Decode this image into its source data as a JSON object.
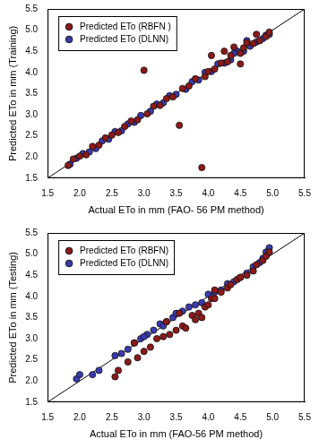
{
  "chart_data": [
    {
      "type": "scatter",
      "x_label": "Actual ETo in mm (FAO- 56 PM method)",
      "y_label": "Predicted ETo in mm (Training)",
      "xlim": [
        1.5,
        5.5
      ],
      "ylim": [
        1.5,
        5.5
      ],
      "xticks": [
        1.5,
        {
          "value": 2,
          "label": "2.0"
        },
        2.5,
        {
          "value": 3,
          "label": "3.0"
        },
        3.5,
        {
          "value": 4,
          "label": "4.0"
        },
        4.5,
        {
          "value": 5,
          "label": "5.0"
        },
        5.5
      ],
      "yticks": [
        1.5,
        {
          "value": 2,
          "label": "2.0"
        },
        2.5,
        {
          "value": 3,
          "label": "3.0"
        },
        3.5,
        {
          "value": 4,
          "label": "4.0"
        },
        4.5,
        {
          "value": 5,
          "label": "5.0"
        },
        5.5
      ],
      "grid": false,
      "legend": "upper left",
      "series": [
        {
          "name": "Predicted ETo (RBFN )",
          "color": "#8b1a1a",
          "marker": "circle",
          "x": [
            1.82,
            1.9,
            2.0,
            2.1,
            2.2,
            2.3,
            2.4,
            2.5,
            2.6,
            2.7,
            2.8,
            2.9,
            3.0,
            3.05,
            3.15,
            3.25,
            3.35,
            3.45,
            3.55,
            3.6,
            3.7,
            3.8,
            3.9,
            3.95,
            4.0,
            4.05,
            4.1,
            4.2,
            4.3,
            4.35,
            4.4,
            4.5,
            4.55,
            4.6,
            4.7,
            4.75,
            4.8,
            4.9,
            4.95,
            4.5,
            4.25
          ],
          "values": [
            1.8,
            1.95,
            2.02,
            2.05,
            2.25,
            2.28,
            2.45,
            2.52,
            2.58,
            2.72,
            2.85,
            2.88,
            4.05,
            3.02,
            3.2,
            3.22,
            3.38,
            3.42,
            2.75,
            3.62,
            3.68,
            3.85,
            1.75,
            3.9,
            4.02,
            4.4,
            4.08,
            4.22,
            4.25,
            4.4,
            4.6,
            4.45,
            4.58,
            4.7,
            4.68,
            4.9,
            4.75,
            4.85,
            4.95,
            4.2,
            4.5
          ]
        },
        {
          "name": "Predicted ETo (DLNN)",
          "color": "#3b3bb0",
          "marker": "circle",
          "x": [
            1.85,
            1.95,
            2.05,
            2.15,
            2.25,
            2.35,
            2.45,
            2.55,
            2.65,
            2.75,
            2.85,
            2.95,
            3.1,
            3.2,
            3.3,
            3.4,
            3.5,
            3.65,
            3.75,
            3.85,
            3.95,
            4.05,
            4.15,
            4.25,
            4.35,
            4.45,
            4.55,
            4.65,
            4.75,
            4.85,
            4.9,
            4.95,
            4.6,
            4.4
          ],
          "values": [
            1.83,
            1.97,
            2.08,
            2.12,
            2.2,
            2.38,
            2.42,
            2.6,
            2.62,
            2.78,
            2.82,
            2.98,
            3.08,
            3.25,
            3.28,
            3.45,
            3.48,
            3.6,
            3.78,
            3.82,
            4.0,
            4.02,
            4.2,
            4.22,
            4.3,
            4.5,
            4.5,
            4.62,
            4.72,
            4.8,
            4.88,
            4.9,
            4.75,
            4.45
          ]
        }
      ]
    },
    {
      "type": "scatter",
      "x_label": "Actual ETo in mm (FAO-56 PM method)",
      "y_label": "Predicted ETo in mm (Testing)",
      "xlim": [
        1.5,
        5.5
      ],
      "ylim": [
        1.5,
        5.5
      ],
      "xticks": [
        1.5,
        {
          "value": 2,
          "label": "2.0"
        },
        2.5,
        {
          "value": 3,
          "label": "3.0"
        },
        3.5,
        {
          "value": 4,
          "label": "4.0"
        },
        4.5,
        {
          "value": 5,
          "label": "5.0"
        },
        5.5
      ],
      "yticks": [
        1.5,
        {
          "value": 2,
          "label": "2.0"
        },
        2.5,
        {
          "value": 3,
          "label": "3.0"
        },
        3.5,
        {
          "value": 4,
          "label": "4.0"
        },
        4.5,
        {
          "value": 5,
          "label": "5.0"
        },
        5.5
      ],
      "grid": false,
      "legend": "upper left",
      "series": [
        {
          "name": "Predicted ETo (RBFN)",
          "color": "#8b1a1a",
          "marker": "circle",
          "x": [
            2.55,
            2.6,
            2.75,
            2.9,
            3.0,
            3.1,
            3.2,
            3.3,
            3.4,
            3.5,
            3.6,
            3.65,
            3.75,
            3.8,
            3.85,
            3.9,
            3.95,
            4.0,
            4.05,
            4.1,
            4.2,
            4.3,
            4.35,
            4.45,
            4.5,
            4.6,
            4.7,
            4.75,
            4.85,
            4.9,
            4.95,
            2.85,
            3.35,
            3.55,
            4.1
          ],
          "values": [
            2.1,
            2.25,
            2.45,
            2.55,
            2.7,
            2.8,
            3.0,
            3.05,
            3.1,
            3.2,
            3.3,
            3.25,
            3.55,
            3.45,
            3.6,
            3.5,
            3.75,
            3.8,
            3.95,
            3.95,
            4.1,
            4.2,
            4.28,
            4.4,
            4.45,
            4.5,
            4.6,
            4.75,
            4.85,
            4.95,
            5.05,
            2.9,
            3.4,
            3.6,
            4.15
          ]
        },
        {
          "name": "Predicted ETo (DLNN)",
          "color": "#3b3bb0",
          "marker": "circle",
          "x": [
            1.95,
            2.0,
            2.2,
            2.3,
            2.55,
            2.65,
            2.75,
            2.85,
            2.95,
            3.05,
            3.15,
            3.25,
            3.35,
            3.45,
            3.5,
            3.6,
            3.7,
            3.8,
            3.9,
            4.0,
            4.1,
            4.2,
            4.3,
            4.4,
            4.5,
            4.6,
            4.7,
            4.8,
            4.85,
            4.9,
            4.95,
            3.0,
            3.3
          ],
          "values": [
            2.05,
            2.15,
            2.15,
            2.25,
            2.6,
            2.65,
            2.75,
            2.9,
            3.0,
            3.1,
            3.2,
            3.35,
            3.4,
            3.5,
            3.6,
            3.65,
            3.75,
            3.8,
            3.85,
            4.05,
            4.1,
            4.15,
            4.3,
            4.35,
            4.45,
            4.55,
            4.7,
            4.8,
            4.9,
            5.05,
            5.15,
            3.05,
            3.3
          ]
        }
      ]
    }
  ]
}
